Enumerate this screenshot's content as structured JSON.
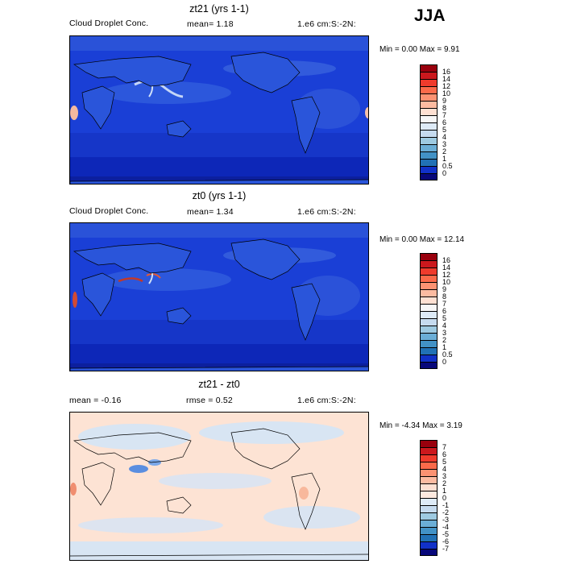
{
  "season": "JJA",
  "panels": [
    {
      "title": "zt21 (yrs 1-1)",
      "left": "Cloud Droplet Conc.",
      "mid": "mean=    1.18",
      "right": "1.e6 cm:S:-2N:",
      "minmax": "Min =   0.00  Max =    9.91",
      "colors": [
        "#99000d",
        "#cb181d",
        "#ef3b2c",
        "#fb6a4a",
        "#fc9272",
        "#fcbba1",
        "#fee0d2",
        "#f7f7f7",
        "#deebf7",
        "#c6dbef",
        "#9ecae1",
        "#6baed6",
        "#4292c6",
        "#2171b5",
        "#1131c8",
        "#08087a"
      ],
      "labels": [
        "16",
        "14",
        "12",
        "10",
        "9",
        "8",
        "7",
        "6",
        "5",
        "4",
        "3",
        "2",
        "1",
        "0.5",
        "0"
      ]
    },
    {
      "title": "zt0 (yrs 1-1)",
      "left": "Cloud Droplet Conc.",
      "mid": "mean=    1.34",
      "right": "1.e6 cm:S:-2N:",
      "minmax": "Min =   0.00  Max =  12.14",
      "colors": [
        "#99000d",
        "#cb181d",
        "#ef3b2c",
        "#fb6a4a",
        "#fc9272",
        "#fcbba1",
        "#fee0d2",
        "#f7f7f7",
        "#deebf7",
        "#c6dbef",
        "#9ecae1",
        "#6baed6",
        "#4292c6",
        "#2171b5",
        "#1131c8",
        "#08087a"
      ],
      "labels": [
        "16",
        "14",
        "12",
        "10",
        "9",
        "8",
        "7",
        "6",
        "5",
        "4",
        "3",
        "2",
        "1",
        "0.5",
        "0"
      ]
    },
    {
      "title": "zt21 - zt0",
      "left": "mean =   -0.16",
      "mid": "rmse =    0.52",
      "right": "1.e6 cm:S:-2N:",
      "minmax": "Min =  -4.34  Max =    3.19",
      "colors": [
        "#99000d",
        "#cb181d",
        "#ef3b2c",
        "#fb6a4a",
        "#fc9272",
        "#fcbba1",
        "#fee0d2",
        "#fde9df",
        "#deebf7",
        "#c6dbef",
        "#9ecae1",
        "#6baed6",
        "#4292c6",
        "#2171b5",
        "#1131c8",
        "#08087a"
      ],
      "labels": [
        "7",
        "6",
        "5",
        "4",
        "3",
        "2",
        "1",
        "0",
        "-1",
        "-2",
        "-3",
        "-4",
        "-5",
        "-6",
        "-7"
      ]
    }
  ]
}
